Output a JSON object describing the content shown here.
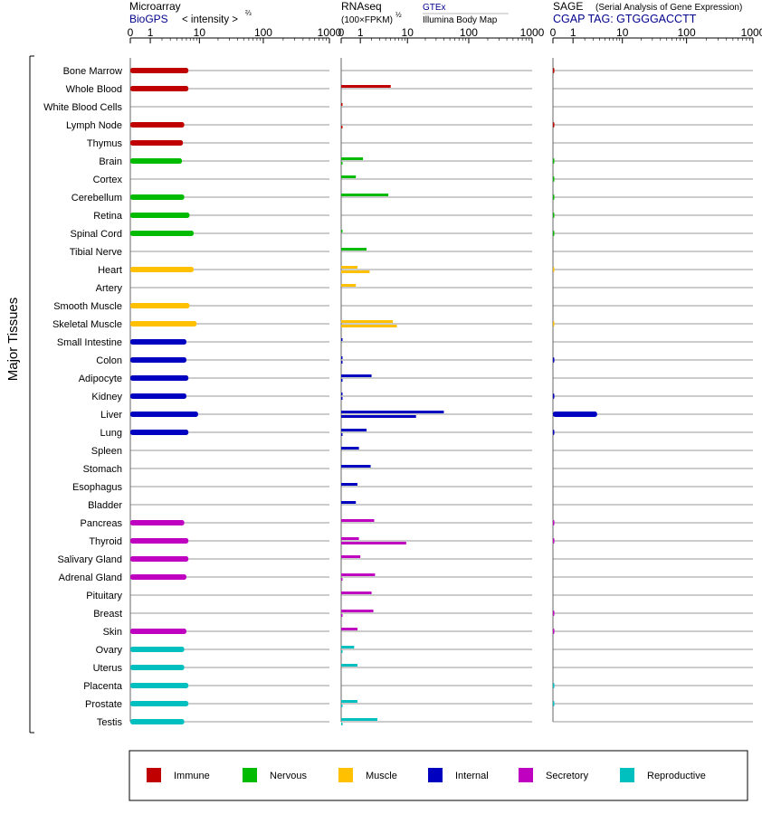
{
  "colors": {
    "Immune": "#c00000",
    "Nervous": "#00bb00",
    "Muscle": "#ffc000",
    "Internal": "#0000c0",
    "Secretory": "#c000c0",
    "Reproductive": "#00bfbf"
  },
  "panels": [
    {
      "title": "Microarray",
      "subtitle": "BioGPS",
      "note": "< intensity >",
      "note_exponent": "⅔"
    },
    {
      "title": "RNAseq",
      "subtitle": "(100×FPKM)",
      "subtitle_exponent": "½",
      "source_top": "GTEx",
      "source_bottom": "Illumina Body Map"
    },
    {
      "title": "SAGE",
      "title_note": "(Serial Analysis of Gene Expression)",
      "subtitle": "CGAP TAG: GTGGGACCTT"
    }
  ],
  "chart_data": {
    "type": "bar",
    "orientation": "horizontal",
    "group_label": "Major Tissues",
    "x_scale": "log (value + 1)",
    "x_ticks": [
      "0",
      "1",
      "10",
      "100",
      "1000"
    ],
    "xlim": [
      0,
      1000
    ],
    "legend": {
      "placement": "bottom",
      "entries": [
        "Immune",
        "Nervous",
        "Muscle",
        "Internal",
        "Secretory",
        "Reproductive"
      ]
    },
    "tissues": [
      {
        "name": "Bone Marrow",
        "system": "Immune",
        "microarray": 6.5,
        "gtex": null,
        "ibm": null,
        "sage": 0.05
      },
      {
        "name": "Whole Blood",
        "system": "Immune",
        "microarray": 6.5,
        "gtex": 5,
        "ibm": null,
        "sage": null
      },
      {
        "name": "White Blood Cells",
        "system": "Immune",
        "microarray": null,
        "gtex": 0.05,
        "ibm": null,
        "sage": null
      },
      {
        "name": "Lymph Node",
        "system": "Immune",
        "microarray": 5.5,
        "gtex": null,
        "ibm": 0.05,
        "sage": 0.05
      },
      {
        "name": "Thymus",
        "system": "Immune",
        "microarray": 5.2,
        "gtex": null,
        "ibm": null,
        "sage": null
      },
      {
        "name": "Brain",
        "system": "Nervous",
        "microarray": 5,
        "gtex": 1.2,
        "ibm": 0.05,
        "sage": 0.05
      },
      {
        "name": "Cortex",
        "system": "Nervous",
        "microarray": null,
        "gtex": 0.7,
        "ibm": null,
        "sage": 0.05
      },
      {
        "name": "Cerebellum",
        "system": "Nervous",
        "microarray": 5.5,
        "gtex": 4.5,
        "ibm": null,
        "sage": 0.05
      },
      {
        "name": "Retina",
        "system": "Nervous",
        "microarray": 6.8,
        "gtex": null,
        "ibm": null,
        "sage": 0.05
      },
      {
        "name": "Spinal Cord",
        "system": "Nervous",
        "microarray": 8,
        "gtex": 0.05,
        "ibm": null,
        "sage": 0.05
      },
      {
        "name": "Tibial Nerve",
        "system": "Nervous",
        "microarray": null,
        "gtex": 1.5,
        "ibm": null,
        "sage": null
      },
      {
        "name": "Heart",
        "system": "Muscle",
        "microarray": 8,
        "gtex": 0.8,
        "ibm": 1.8,
        "sage": 0.05
      },
      {
        "name": "Artery",
        "system": "Muscle",
        "microarray": null,
        "gtex": 0.7,
        "ibm": null,
        "sage": null
      },
      {
        "name": "Smooth Muscle",
        "system": "Muscle",
        "microarray": 6.8,
        "gtex": null,
        "ibm": null,
        "sage": null
      },
      {
        "name": "Skeletal Muscle",
        "system": "Muscle",
        "microarray": 9,
        "gtex": 5.5,
        "ibm": 6.5,
        "sage": 0.05
      },
      {
        "name": "Small Intestine",
        "system": "Internal",
        "microarray": 6,
        "gtex": 0.05,
        "ibm": null,
        "sage": null
      },
      {
        "name": "Colon",
        "system": "Internal",
        "microarray": 6,
        "gtex": 0.05,
        "ibm": 0.05,
        "sage": 0.05
      },
      {
        "name": "Adipocyte",
        "system": "Internal",
        "microarray": 6.5,
        "gtex": 2.0,
        "ibm": 0.05,
        "sage": null
      },
      {
        "name": "Kidney",
        "system": "Internal",
        "microarray": 6,
        "gtex": 0.05,
        "ibm": 0.05,
        "sage": 0.05
      },
      {
        "name": "Liver",
        "system": "Internal",
        "microarray": 9.5,
        "gtex": 40,
        "ibm": 14,
        "sage": 3.6
      },
      {
        "name": "Lung",
        "system": "Internal",
        "microarray": 6.5,
        "gtex": 1.5,
        "ibm": 0.05,
        "sage": 0.05
      },
      {
        "name": "Spleen",
        "system": "Internal",
        "microarray": null,
        "gtex": 0.9,
        "ibm": null,
        "sage": null
      },
      {
        "name": "Stomach",
        "system": "Internal",
        "microarray": null,
        "gtex": 1.9,
        "ibm": null,
        "sage": null
      },
      {
        "name": "Esophagus",
        "system": "Internal",
        "microarray": null,
        "gtex": 0.8,
        "ibm": null,
        "sage": null
      },
      {
        "name": "Bladder",
        "system": "Internal",
        "microarray": null,
        "gtex": 0.7,
        "ibm": null,
        "sage": null
      },
      {
        "name": "Pancreas",
        "system": "Secretory",
        "microarray": 5.5,
        "gtex": 2.3,
        "ibm": null,
        "sage": 0.05
      },
      {
        "name": "Thyroid",
        "system": "Secretory",
        "microarray": 6.5,
        "gtex": 0.9,
        "ibm": 9.5,
        "sage": 0.05
      },
      {
        "name": "Salivary Gland",
        "system": "Secretory",
        "microarray": 6.5,
        "gtex": 1.0,
        "ibm": null,
        "sage": null
      },
      {
        "name": "Adrenal Gland",
        "system": "Secretory",
        "microarray": 6.0,
        "gtex": 2.4,
        "ibm": 0.05,
        "sage": null
      },
      {
        "name": "Pituitary",
        "system": "Secretory",
        "microarray": null,
        "gtex": 2.0,
        "ibm": null,
        "sage": null
      },
      {
        "name": "Breast",
        "system": "Secretory",
        "microarray": null,
        "gtex": 2.2,
        "ibm": 0.05,
        "sage": 0.05
      },
      {
        "name": "Skin",
        "system": "Secretory",
        "microarray": 6.0,
        "gtex": 0.8,
        "ibm": null,
        "sage": 0.05
      },
      {
        "name": "Ovary",
        "system": "Reproductive",
        "microarray": 5.5,
        "gtex": 0.6,
        "ibm": 0.05,
        "sage": null
      },
      {
        "name": "Uterus",
        "system": "Reproductive",
        "microarray": 5.5,
        "gtex": 0.8,
        "ibm": null,
        "sage": null
      },
      {
        "name": "Placenta",
        "system": "Reproductive",
        "microarray": 6.5,
        "gtex": null,
        "ibm": null,
        "sage": 0.05
      },
      {
        "name": "Prostate",
        "system": "Reproductive",
        "microarray": 6.5,
        "gtex": 0.8,
        "ibm": 0.05,
        "sage": 0.05
      },
      {
        "name": "Testis",
        "system": "Reproductive",
        "microarray": 5.5,
        "gtex": 2.7,
        "ibm": 0.05,
        "sage": null
      }
    ]
  }
}
